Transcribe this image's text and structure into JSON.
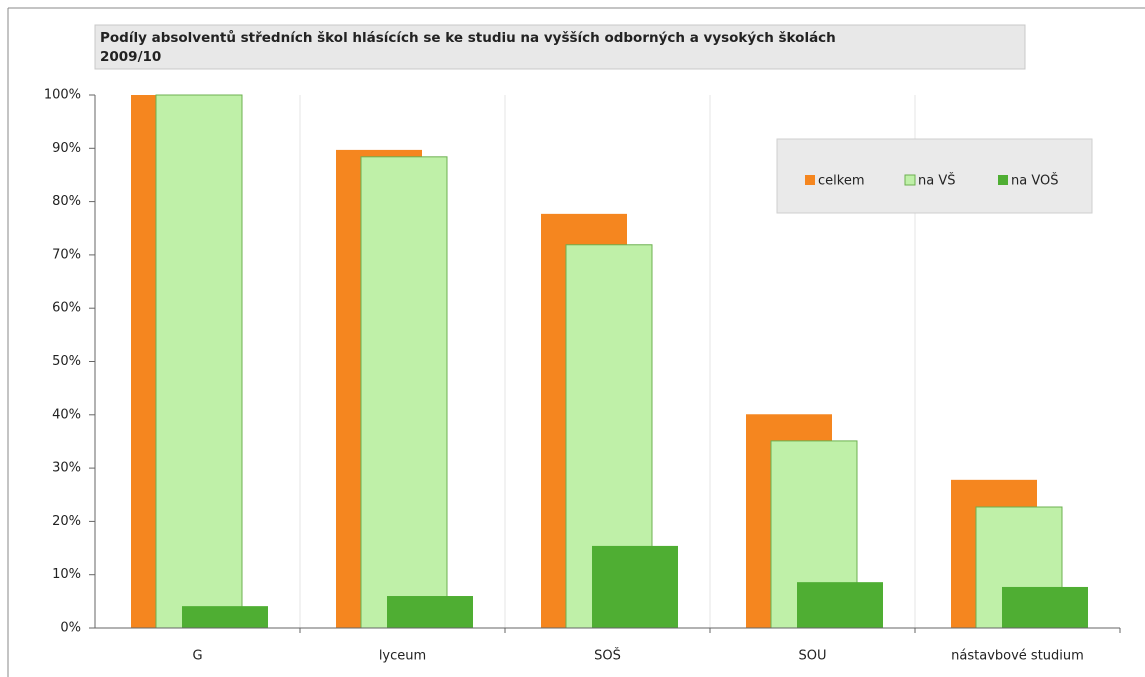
{
  "chart_data": {
    "type": "bar",
    "title": "Podíly absolventů středních škol hlásících se ke studiu na vyšších odborných a vysokých školách",
    "subtitle": "2009/10",
    "categories": [
      "G",
      "lyceum",
      "SOŠ",
      "SOU",
      "nástavbové studium"
    ],
    "series": [
      {
        "name": "celkem",
        "color": "#f5861f",
        "values": [
          100,
          89.7,
          77.7,
          40.1,
          27.8
        ]
      },
      {
        "name": "na VŠ",
        "color": "#bff0a8",
        "values": [
          100,
          88.4,
          71.9,
          35.1,
          22.7
        ]
      },
      {
        "name": "na VOŠ",
        "color": "#4fae33",
        "values": [
          4.1,
          6.0,
          15.4,
          8.6,
          7.7
        ]
      }
    ],
    "ylim": [
      0,
      100
    ],
    "yticks": [
      {
        "value": 0,
        "label": "0%"
      },
      {
        "value": 10,
        "label": "10%"
      },
      {
        "value": 20,
        "label": "20%"
      },
      {
        "value": 30,
        "label": "30%"
      },
      {
        "value": 40,
        "label": "40%"
      },
      {
        "value": 50,
        "label": "50%"
      },
      {
        "value": 60,
        "label": "60%"
      },
      {
        "value": 70,
        "label": "70%"
      },
      {
        "value": 80,
        "label": "80%"
      },
      {
        "value": 90,
        "label": "90%"
      },
      {
        "value": 100,
        "label": "100%"
      }
    ],
    "legend": "top-right"
  }
}
